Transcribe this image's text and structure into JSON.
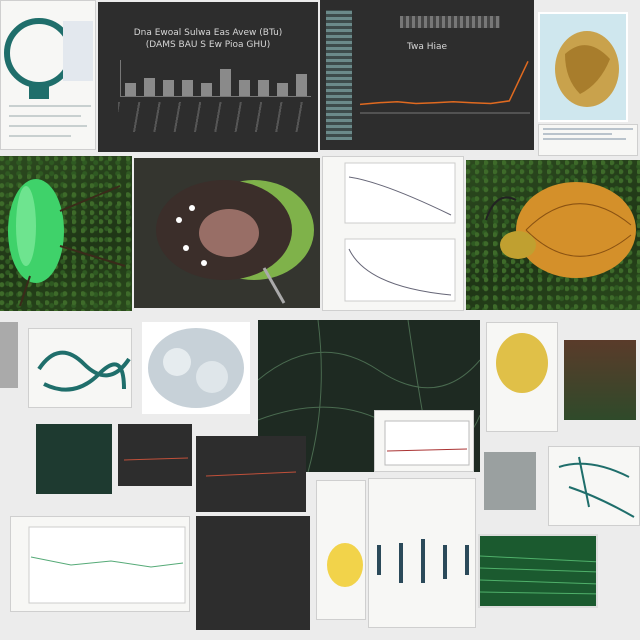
{
  "collage": {
    "description_free": true,
    "bar_chart": {
      "title_line1": "Dna Ewoal Sulwa Eas Avew (BTu)",
      "title_line2": "(DAMS BAU S Ew Pioa GHU)",
      "values": [
        3,
        4,
        3.5,
        3.5,
        3,
        6,
        3.5,
        3.5,
        3,
        5
      ],
      "ylim": [
        0,
        8
      ]
    },
    "line_chart": {
      "title": "Twa Hiae",
      "values": [
        1,
        1.2,
        1.3,
        1.1,
        1.2,
        1.3,
        1.2,
        1.1,
        1.4,
        6
      ]
    },
    "accent_colors": {
      "teal": "#1f6e6b",
      "beetle_green": "#3fd26a",
      "amber": "#c88a1c",
      "orange_line": "#e06a20"
    }
  }
}
